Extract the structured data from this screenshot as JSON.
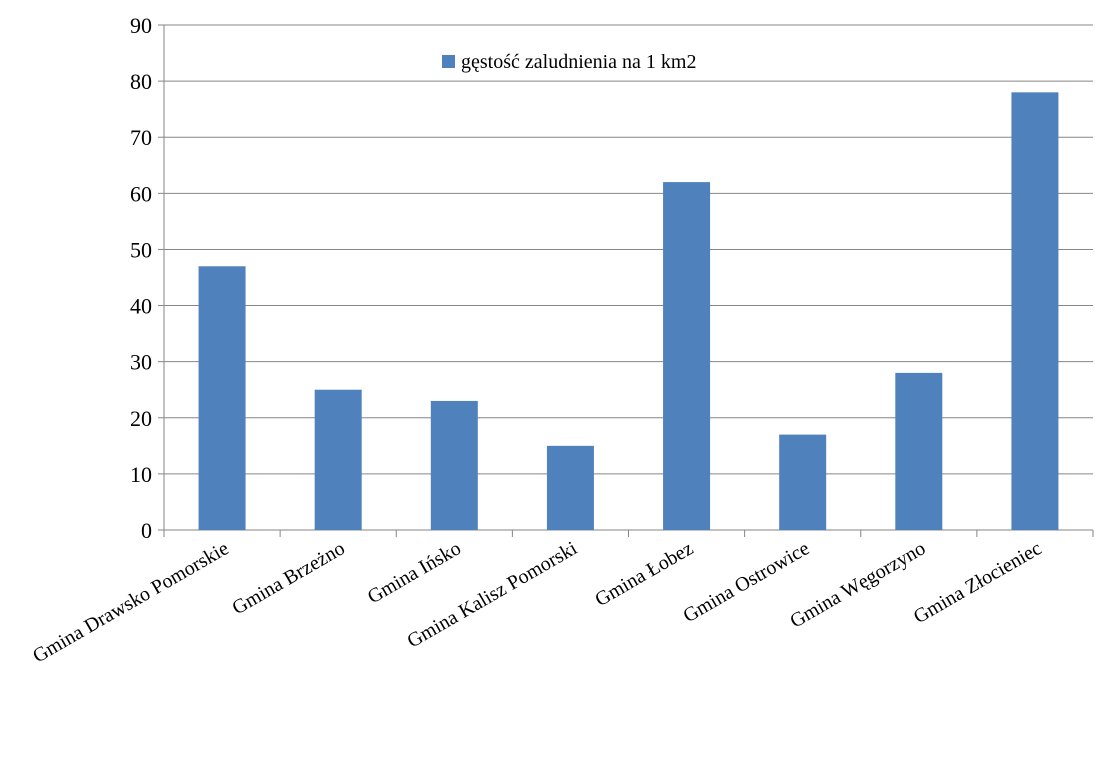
{
  "chart_data": {
    "type": "bar",
    "categories": [
      "Gmina Drawsko Pomorskie",
      "Gmina Brzeżno",
      "Gmina Ińsko",
      "Gmina Kalisz Pomorski",
      "Gmina Łobez",
      "Gmina Ostrowice",
      "Gmina Węgorzyno",
      "Gmina Złocieniec"
    ],
    "series": [
      {
        "name": "gęstość zaludnienia na 1 km2",
        "values": [
          47,
          25,
          23,
          15,
          62,
          17,
          28,
          78
        ],
        "color": "#4F81BD"
      }
    ],
    "y_ticks": [
      "0",
      "10",
      "20",
      "30",
      "40",
      "50",
      "60",
      "70",
      "80",
      "90"
    ],
    "ylim": [
      0,
      90
    ],
    "grid": true,
    "legend_position": "top"
  }
}
